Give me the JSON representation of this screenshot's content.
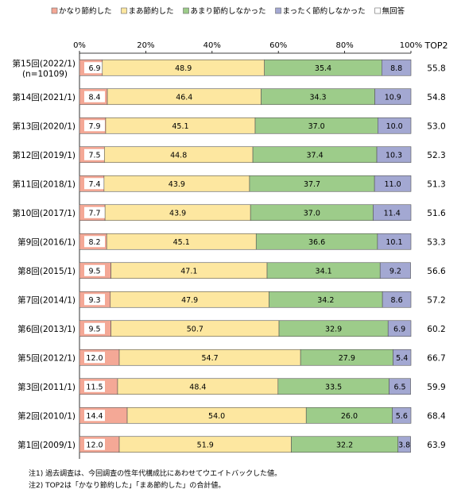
{
  "chart_data": {
    "type": "bar",
    "orientation": "horizontal",
    "stacked": true,
    "percent_stacked": true,
    "categories": [
      [
        "第15回(2022/1)",
        "(n=10109)"
      ],
      [
        "第14回(2021/1)"
      ],
      [
        "第13回(2020/1)"
      ],
      [
        "第12回(2019/1)"
      ],
      [
        "第11回(2018/1)"
      ],
      [
        "第10回(2017/1)"
      ],
      [
        "第9回(2016/1)"
      ],
      [
        "第8回(2015/1)"
      ],
      [
        "第7回(2014/1)"
      ],
      [
        "第6回(2013/1)"
      ],
      [
        "第5回(2012/1)"
      ],
      [
        "第3回(2011/1)"
      ],
      [
        "第2回(2010/1)"
      ],
      [
        "第1回(2009/1)"
      ]
    ],
    "series": [
      {
        "name": "かなり節約した",
        "color": "#f4a896",
        "values": [
          6.9,
          8.4,
          7.9,
          7.5,
          7.4,
          7.7,
          8.2,
          9.5,
          9.3,
          9.5,
          12.0,
          11.5,
          14.4,
          12.0
        ]
      },
      {
        "name": "まあ節約した",
        "color": "#fde7a0",
        "values": [
          48.9,
          46.4,
          45.1,
          44.8,
          43.9,
          43.9,
          45.1,
          47.1,
          47.9,
          50.7,
          54.7,
          48.4,
          54.0,
          51.9
        ]
      },
      {
        "name": "あまり節約しなかった",
        "color": "#9dcc8a",
        "values": [
          35.4,
          34.3,
          37.0,
          37.4,
          37.7,
          37.0,
          36.6,
          34.1,
          34.2,
          32.9,
          27.9,
          33.5,
          26.0,
          32.2
        ]
      },
      {
        "name": "まったく節約しなかった",
        "color": "#a3a8d2",
        "values": [
          8.8,
          10.9,
          10.0,
          10.3,
          11.0,
          11.4,
          10.1,
          9.2,
          8.6,
          6.9,
          5.4,
          6.5,
          5.6,
          3.8
        ]
      },
      {
        "name": "無回答",
        "color": "#ffffff",
        "values": [
          0.0,
          0.0,
          0.0,
          0.0,
          0.0,
          0.0,
          0.0,
          0.0,
          0.0,
          0.0,
          0.0,
          0.0,
          0.0,
          0.0
        ]
      }
    ],
    "value_labels": [
      [
        "6.9",
        "48.9",
        "35.4",
        "8.8"
      ],
      [
        "8.4",
        "46.4",
        "34.3",
        "10.9"
      ],
      [
        "7.9",
        "45.1",
        "37.0",
        "10.0"
      ],
      [
        "7.5",
        "44.8",
        "37.4",
        "10.3"
      ],
      [
        "7.4",
        "43.9",
        "37.7",
        "11.0"
      ],
      [
        "7.7",
        "43.9",
        "37.0",
        "11.4"
      ],
      [
        "8.2",
        "45.1",
        "36.6",
        "10.1"
      ],
      [
        "9.5",
        "47.1",
        "34.1",
        "9.2"
      ],
      [
        "9.3",
        "47.9",
        "34.2",
        "8.6"
      ],
      [
        "9.5",
        "50.7",
        "32.9",
        "6.9"
      ],
      [
        "12.0",
        "54.7",
        "27.9",
        "5.4"
      ],
      [
        "11.5",
        "48.4",
        "33.5",
        "6.5"
      ],
      [
        "14.4",
        "54.0",
        "26.0",
        "5.6"
      ],
      [
        "12.0",
        "51.9",
        "32.2",
        "3.8"
      ]
    ],
    "top2_label": "TOP2",
    "top2": [
      "55.8",
      "54.8",
      "53.0",
      "52.3",
      "51.3",
      "51.6",
      "53.3",
      "56.6",
      "57.2",
      "60.2",
      "66.7",
      "59.9",
      "68.4",
      "63.9"
    ],
    "x_ticks": [
      "0%",
      "20%",
      "40%",
      "60%",
      "80%",
      "100%"
    ],
    "xlim": [
      0,
      100
    ],
    "grid": false,
    "legend_position": "top",
    "title": "",
    "xlabel": "",
    "ylabel": ""
  },
  "notes": [
    "注1) 過去調査は、今回調査の性年代構成比にあわせてウエイトバックした値。",
    "注2) TOP2は「かなり節約した」「まあ節約した」の合計値。"
  ]
}
